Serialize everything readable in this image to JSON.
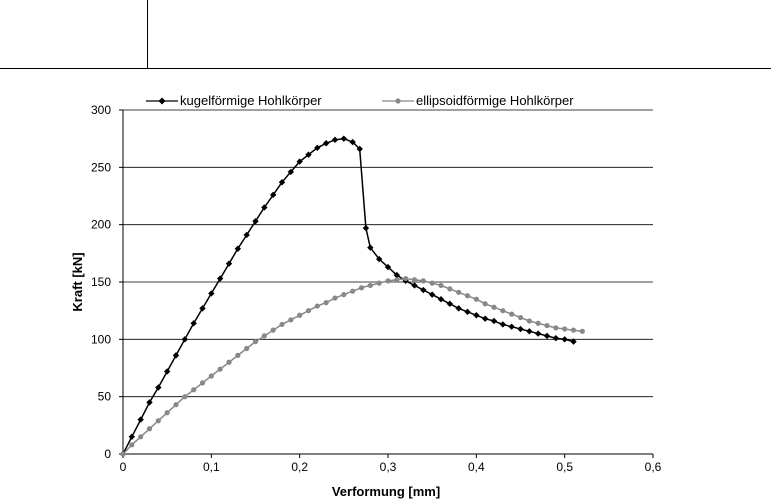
{
  "chart_data": {
    "type": "line",
    "title": "",
    "xlabel": "Verformung [mm]",
    "ylabel": "Kraft [kN]",
    "xlim": [
      0,
      0.6
    ],
    "ylim": [
      0,
      300
    ],
    "x_ticks": [
      "0",
      "0,1",
      "0,2",
      "0,3",
      "0,4",
      "0,5",
      "0,6"
    ],
    "y_ticks": [
      "0",
      "50",
      "100",
      "150",
      "200",
      "250",
      "300"
    ],
    "grid": "horizontal",
    "legend_position": "top",
    "series": [
      {
        "name": "kugelförmige Hohlkörper",
        "color": "#000000",
        "marker": "diamond",
        "points": [
          [
            0,
            0
          ],
          [
            0.01,
            15
          ],
          [
            0.02,
            30
          ],
          [
            0.03,
            45
          ],
          [
            0.04,
            58
          ],
          [
            0.05,
            72
          ],
          [
            0.06,
            86
          ],
          [
            0.07,
            100
          ],
          [
            0.08,
            114
          ],
          [
            0.09,
            127
          ],
          [
            0.1,
            140
          ],
          [
            0.11,
            153
          ],
          [
            0.12,
            166
          ],
          [
            0.13,
            179
          ],
          [
            0.14,
            191
          ],
          [
            0.15,
            203
          ],
          [
            0.16,
            215
          ],
          [
            0.17,
            226
          ],
          [
            0.18,
            237
          ],
          [
            0.19,
            246
          ],
          [
            0.2,
            255
          ],
          [
            0.21,
            261
          ],
          [
            0.22,
            267
          ],
          [
            0.23,
            271
          ],
          [
            0.24,
            274
          ],
          [
            0.25,
            275
          ],
          [
            0.26,
            272
          ],
          [
            0.268,
            266
          ],
          [
            0.275,
            197
          ],
          [
            0.28,
            180
          ],
          [
            0.29,
            170
          ],
          [
            0.3,
            163
          ],
          [
            0.31,
            156
          ],
          [
            0.32,
            151
          ],
          [
            0.33,
            147
          ],
          [
            0.34,
            143
          ],
          [
            0.35,
            139
          ],
          [
            0.36,
            135
          ],
          [
            0.37,
            131
          ],
          [
            0.38,
            127
          ],
          [
            0.39,
            124
          ],
          [
            0.4,
            121
          ],
          [
            0.41,
            118
          ],
          [
            0.42,
            116
          ],
          [
            0.43,
            113
          ],
          [
            0.44,
            111
          ],
          [
            0.45,
            109
          ],
          [
            0.46,
            107
          ],
          [
            0.47,
            105
          ],
          [
            0.48,
            103
          ],
          [
            0.49,
            101
          ],
          [
            0.5,
            100
          ],
          [
            0.51,
            98
          ]
        ]
      },
      {
        "name": "ellipsoidförmige Hohlkörper",
        "color": "#888888",
        "marker": "circle",
        "points": [
          [
            0,
            0
          ],
          [
            0.01,
            8
          ],
          [
            0.02,
            15
          ],
          [
            0.03,
            22
          ],
          [
            0.04,
            29
          ],
          [
            0.05,
            36
          ],
          [
            0.06,
            43
          ],
          [
            0.07,
            50
          ],
          [
            0.08,
            56
          ],
          [
            0.09,
            62
          ],
          [
            0.1,
            68
          ],
          [
            0.11,
            74
          ],
          [
            0.12,
            80
          ],
          [
            0.13,
            86
          ],
          [
            0.14,
            92
          ],
          [
            0.15,
            98
          ],
          [
            0.16,
            103
          ],
          [
            0.17,
            108
          ],
          [
            0.18,
            113
          ],
          [
            0.19,
            117
          ],
          [
            0.2,
            121
          ],
          [
            0.21,
            125
          ],
          [
            0.22,
            129
          ],
          [
            0.23,
            132
          ],
          [
            0.24,
            136
          ],
          [
            0.25,
            139
          ],
          [
            0.26,
            142
          ],
          [
            0.27,
            145
          ],
          [
            0.28,
            147
          ],
          [
            0.29,
            149
          ],
          [
            0.3,
            151
          ],
          [
            0.31,
            152
          ],
          [
            0.32,
            153
          ],
          [
            0.33,
            152
          ],
          [
            0.34,
            151
          ],
          [
            0.35,
            149
          ],
          [
            0.36,
            147
          ],
          [
            0.37,
            144
          ],
          [
            0.38,
            141
          ],
          [
            0.39,
            138
          ],
          [
            0.4,
            135
          ],
          [
            0.41,
            131
          ],
          [
            0.42,
            128
          ],
          [
            0.43,
            125
          ],
          [
            0.44,
            122
          ],
          [
            0.45,
            119
          ],
          [
            0.46,
            116
          ],
          [
            0.47,
            114
          ],
          [
            0.48,
            112
          ],
          [
            0.49,
            110
          ],
          [
            0.5,
            109
          ],
          [
            0.51,
            108
          ],
          [
            0.52,
            107
          ]
        ]
      }
    ]
  }
}
